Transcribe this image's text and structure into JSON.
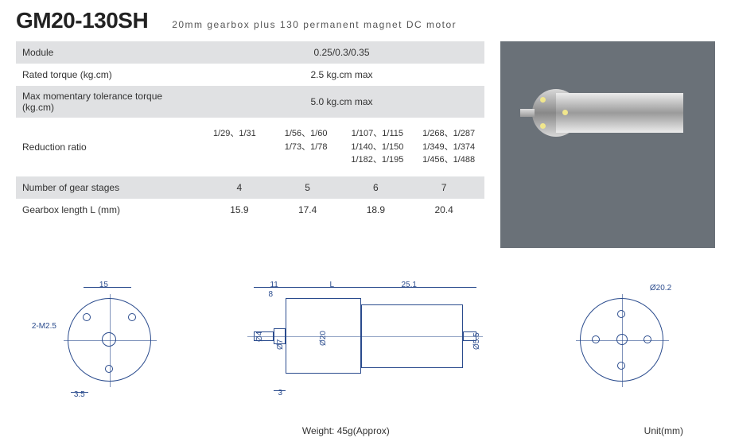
{
  "header": {
    "title": "GM20-130SH",
    "subtitle": "20mm gearbox plus 130 permanent magnet DC motor"
  },
  "specs": {
    "rows": [
      {
        "label": "Module",
        "type": "single",
        "value": "0.25/0.3/0.35",
        "shaded": true
      },
      {
        "label": "Rated torque (kg.cm)",
        "type": "single",
        "value": "2.5 kg.cm max",
        "shaded": false
      },
      {
        "label": "Max momentary tolerance torque (kg.cm)",
        "type": "single",
        "value": "5.0 kg.cm max",
        "shaded": true
      },
      {
        "label": "Reduction ratio",
        "type": "ratio",
        "cells": [
          "1/29、1/31",
          "1/56、1/60\n1/73、1/78",
          "1/107、1/115\n1/140、1/150\n1/182、1/195",
          "1/268、1/287\n1/349、1/374\n1/456、1/488"
        ],
        "shaded": false
      },
      {
        "label": "Number of gear stages",
        "type": "multi",
        "cells": [
          "4",
          "5",
          "6",
          "7"
        ],
        "shaded": true
      },
      {
        "label": "Gearbox length L (mm)",
        "type": "multi",
        "cells": [
          "15.9",
          "17.4",
          "18.9",
          "20.4"
        ],
        "shaded": false
      }
    ]
  },
  "drawing": {
    "front": {
      "dim_top": "15",
      "dim_left": "2-M2.5",
      "dim_bottom": "3.5"
    },
    "side": {
      "dim0": "11",
      "dim1": "8",
      "dim2": "L",
      "dim3": "25.1",
      "dim4": "3",
      "dia1": "Ø4",
      "dia2": "Ø7",
      "dia3": "Ø20",
      "dia4": "Ø5.5"
    },
    "back": {
      "dim": "Ø20.2"
    },
    "weight": "Weight: 45g(Approx)",
    "unit": "Unit(mm)"
  }
}
